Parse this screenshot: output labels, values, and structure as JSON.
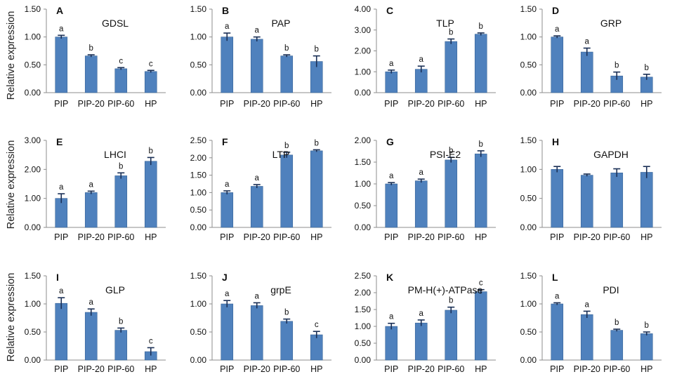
{
  "ylabel": "Relative expression",
  "categories": [
    "PIP",
    "PIP-20",
    "PIP-60",
    "HP"
  ],
  "colors": {
    "bar": "#4f81bd",
    "bar_edge": "#3a6497",
    "error": "#1a2f55",
    "axis": "#8c8c8c"
  },
  "chart_data": [
    {
      "type": "bar",
      "letter": "A",
      "title": "GDSL",
      "categories": [
        "PIP",
        "PIP-20",
        "PIP-60",
        "HP"
      ],
      "values": [
        1.0,
        0.66,
        0.43,
        0.38
      ],
      "errors": [
        0.03,
        0.02,
        0.02,
        0.02
      ],
      "sig": [
        "a",
        "b",
        "c",
        "c"
      ],
      "ylim": [
        0,
        1.5
      ],
      "yticks": [
        0,
        0.5,
        1.0,
        1.5
      ],
      "ytick_labels": [
        "0.00",
        "0.50",
        "1.00",
        "1.50"
      ]
    },
    {
      "type": "bar",
      "letter": "B",
      "title": "PAP",
      "categories": [
        "PIP",
        "PIP-20",
        "PIP-60",
        "HP"
      ],
      "values": [
        1.0,
        0.96,
        0.66,
        0.56
      ],
      "errors": [
        0.07,
        0.04,
        0.02,
        0.1
      ],
      "sig": [
        "a",
        "a",
        "b",
        "b"
      ],
      "ylim": [
        0,
        1.5
      ],
      "yticks": [
        0,
        0.5,
        1.0,
        1.5
      ],
      "ytick_labels": [
        "0.00",
        "0.50",
        "1.00",
        "1.50"
      ]
    },
    {
      "type": "bar",
      "letter": "C",
      "title": "TLP",
      "categories": [
        "PIP",
        "PIP-20",
        "PIP-60",
        "HP"
      ],
      "values": [
        1.0,
        1.12,
        2.45,
        2.8
      ],
      "errors": [
        0.08,
        0.15,
        0.12,
        0.06
      ],
      "sig": [
        "a",
        "a",
        "b",
        "b"
      ],
      "ylim": [
        0,
        4.0
      ],
      "yticks": [
        0,
        1.0,
        2.0,
        3.0,
        4.0
      ],
      "ytick_labels": [
        "0.00",
        "1.00",
        "2.00",
        "3.00",
        "4.00"
      ]
    },
    {
      "type": "bar",
      "letter": "D",
      "title": "GRP",
      "categories": [
        "PIP",
        "PIP-20",
        "PIP-60",
        "HP"
      ],
      "values": [
        1.0,
        0.73,
        0.3,
        0.28
      ],
      "errors": [
        0.02,
        0.07,
        0.07,
        0.05
      ],
      "sig": [
        "a",
        "a",
        "b",
        "b"
      ],
      "ylim": [
        0,
        1.5
      ],
      "yticks": [
        0,
        0.5,
        1.0,
        1.5
      ],
      "ytick_labels": [
        "0.00",
        "0.50",
        "1.00",
        "1.50"
      ]
    },
    {
      "type": "bar",
      "letter": "E",
      "title": "LHCI",
      "categories": [
        "PIP",
        "PIP-20",
        "PIP-60",
        "HP"
      ],
      "values": [
        1.0,
        1.2,
        1.78,
        2.28
      ],
      "errors": [
        0.16,
        0.05,
        0.1,
        0.13
      ],
      "sig": [
        "a",
        "a",
        "b",
        "b"
      ],
      "ylim": [
        0,
        3.0
      ],
      "yticks": [
        0,
        1.0,
        2.0,
        3.0
      ],
      "ytick_labels": [
        "0.00",
        "1.00",
        "2.00",
        "3.00"
      ]
    },
    {
      "type": "bar",
      "letter": "F",
      "title": "LTP",
      "categories": [
        "PIP",
        "PIP-20",
        "PIP-60",
        "HP"
      ],
      "values": [
        1.0,
        1.18,
        2.08,
        2.2
      ],
      "errors": [
        0.05,
        0.05,
        0.08,
        0.03
      ],
      "sig": [
        "a",
        "a",
        "b",
        "b"
      ],
      "ylim": [
        0,
        2.5
      ],
      "yticks": [
        0,
        0.5,
        1.0,
        1.5,
        2.0,
        2.5
      ],
      "ytick_labels": [
        "0.00",
        "0.50",
        "1.00",
        "1.50",
        "2.00",
        "2.50"
      ]
    },
    {
      "type": "bar",
      "letter": "G",
      "title": "PSI-E2",
      "categories": [
        "PIP",
        "PIP-20",
        "PIP-60",
        "HP"
      ],
      "values": [
        1.0,
        1.07,
        1.55,
        1.69
      ],
      "errors": [
        0.03,
        0.04,
        0.06,
        0.07
      ],
      "sig": [
        "a",
        "a",
        "b",
        "b"
      ],
      "ylim": [
        0,
        2.0
      ],
      "yticks": [
        0,
        0.5,
        1.0,
        1.5,
        2.0
      ],
      "ytick_labels": [
        "0.00",
        "0.50",
        "1.00",
        "1.50",
        "2.00"
      ]
    },
    {
      "type": "bar",
      "letter": "H",
      "title": "GAPDH",
      "categories": [
        "PIP",
        "PIP-20",
        "PIP-60",
        "HP"
      ],
      "values": [
        1.0,
        0.9,
        0.94,
        0.95
      ],
      "errors": [
        0.05,
        0.02,
        0.07,
        0.1
      ],
      "sig": [
        "",
        "",
        "",
        ""
      ],
      "ylim": [
        0,
        1.5
      ],
      "yticks": [
        0,
        0.5,
        1.0,
        1.5
      ],
      "ytick_labels": [
        "0.00",
        "0.50",
        "1.00",
        "1.50"
      ]
    },
    {
      "type": "bar",
      "letter": "I",
      "title": "GLP",
      "categories": [
        "PIP",
        "PIP-20",
        "PIP-60",
        "HP"
      ],
      "values": [
        1.01,
        0.85,
        0.53,
        0.15
      ],
      "errors": [
        0.1,
        0.06,
        0.04,
        0.07
      ],
      "sig": [
        "a",
        "a",
        "b",
        "c"
      ],
      "ylim": [
        0,
        1.5
      ],
      "yticks": [
        0,
        0.5,
        1.0,
        1.5
      ],
      "ytick_labels": [
        "0.00",
        "0.50",
        "1.00",
        "1.50"
      ]
    },
    {
      "type": "bar",
      "letter": "J",
      "title": "grpE",
      "categories": [
        "PIP",
        "PIP-20",
        "PIP-60",
        "HP"
      ],
      "values": [
        1.0,
        0.97,
        0.69,
        0.45
      ],
      "errors": [
        0.06,
        0.05,
        0.04,
        0.06
      ],
      "sig": [
        "a",
        "a",
        "b",
        "c"
      ],
      "ylim": [
        0,
        1.5
      ],
      "yticks": [
        0,
        0.5,
        1.0,
        1.5
      ],
      "ytick_labels": [
        "0.00",
        "0.50",
        "1.00",
        "1.50"
      ]
    },
    {
      "type": "bar",
      "letter": "K",
      "title": "PM-H(+)-ATPase",
      "categories": [
        "PIP",
        "PIP-20",
        "PIP-60",
        "HP"
      ],
      "values": [
        1.0,
        1.1,
        1.48,
        2.03
      ],
      "errors": [
        0.09,
        0.09,
        0.09,
        0.06
      ],
      "sig": [
        "a",
        "a",
        "b",
        "c"
      ],
      "ylim": [
        0,
        2.5
      ],
      "yticks": [
        0,
        0.5,
        1.0,
        1.5,
        2.0,
        2.5
      ],
      "ytick_labels": [
        "0.00",
        "0.50",
        "1.00",
        "1.50",
        "2.00",
        "2.50"
      ]
    },
    {
      "type": "bar",
      "letter": "L",
      "title": "PDI",
      "categories": [
        "PIP",
        "PIP-20",
        "PIP-60",
        "HP"
      ],
      "values": [
        1.0,
        0.81,
        0.53,
        0.47
      ],
      "errors": [
        0.02,
        0.06,
        0.02,
        0.03
      ],
      "sig": [
        "a",
        "a",
        "b",
        "b"
      ],
      "ylim": [
        0,
        1.5
      ],
      "yticks": [
        0,
        0.5,
        1.0,
        1.5
      ],
      "ytick_labels": [
        "0.00",
        "0.50",
        "1.00",
        "1.50"
      ]
    }
  ]
}
